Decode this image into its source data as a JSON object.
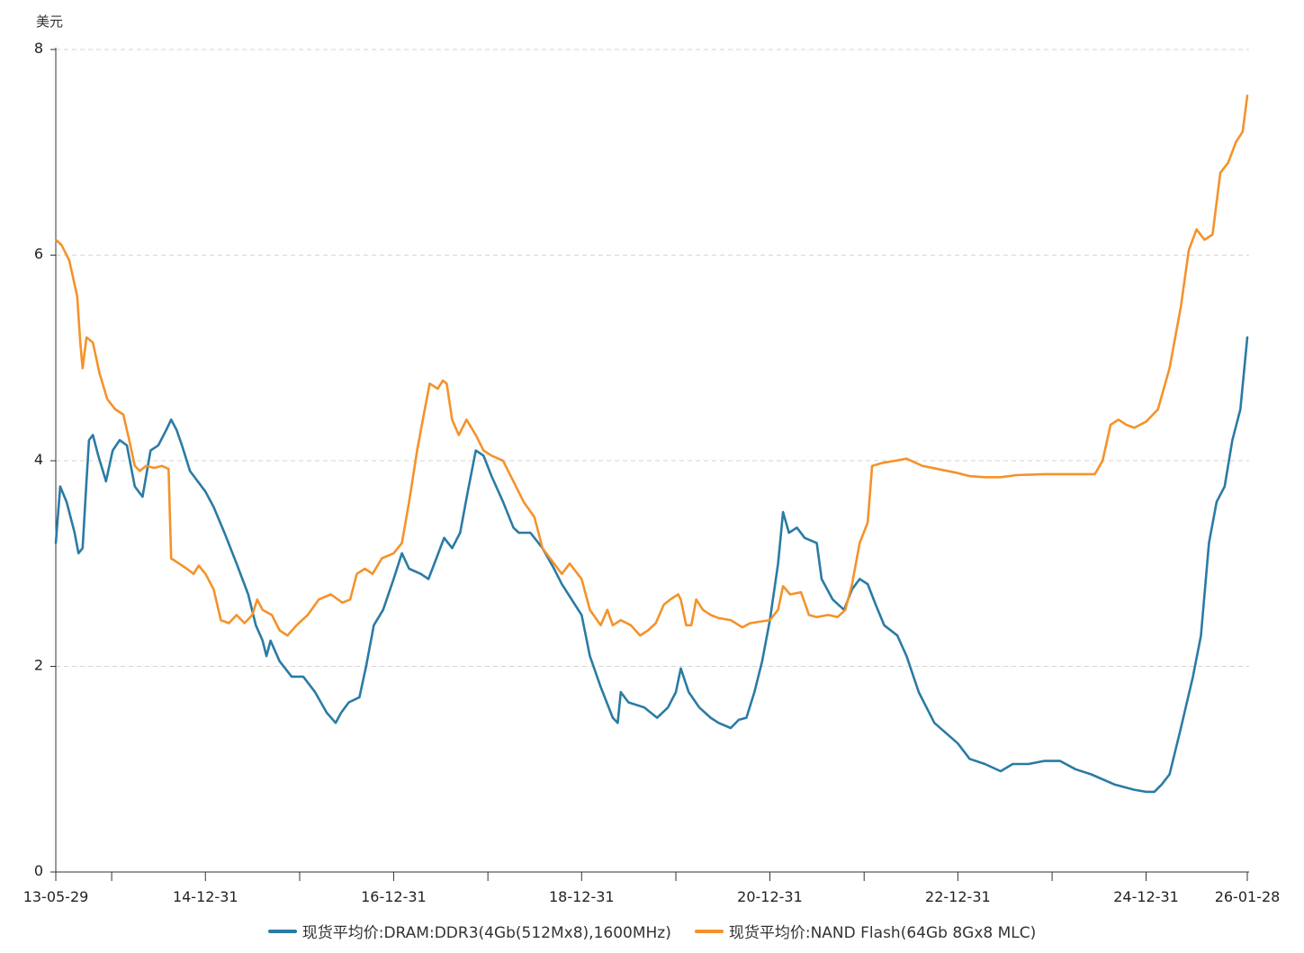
{
  "chart_data": {
    "type": "line",
    "ylabel": "美元",
    "ylim": [
      0,
      8
    ],
    "yticks": [
      "0",
      "2",
      "4",
      "6",
      "8"
    ],
    "grid": true,
    "legend_position": "bottom",
    "xlim": [
      "2013-05-29",
      "2026-01-28"
    ],
    "xticks": [
      {
        "date": "2013-05-29",
        "label": "13-05-29"
      },
      {
        "date": "2014-12-31",
        "label": "14-12-31"
      },
      {
        "date": "2016-12-31",
        "label": "16-12-31"
      },
      {
        "date": "2018-12-31",
        "label": "18-12-31"
      },
      {
        "date": "2020-12-31",
        "label": "20-12-31"
      },
      {
        "date": "2022-12-31",
        "label": "22-12-31"
      },
      {
        "date": "2024-12-31",
        "label": "24-12-31"
      },
      {
        "date": "2026-01-28",
        "label": "26-01-28"
      }
    ],
    "minor_ticks": [
      "2014-01-01",
      "2016-01-01",
      "2018-01-01",
      "2020-01-01",
      "2022-01-01",
      "2024-01-01"
    ],
    "series": [
      {
        "name": "现货平均价:DRAM:DDR3(4Gb(512Mx8),1600MHz)",
        "color": "#2a7ba5",
        "points": [
          [
            "2013-05-29",
            3.2
          ],
          [
            "2013-06-15",
            3.75
          ],
          [
            "2013-07-10",
            3.6
          ],
          [
            "2013-08-10",
            3.3
          ],
          [
            "2013-08-25",
            3.1
          ],
          [
            "2013-09-10",
            3.15
          ],
          [
            "2013-09-25",
            3.8
          ],
          [
            "2013-10-05",
            4.2
          ],
          [
            "2013-10-20",
            4.25
          ],
          [
            "2013-11-10",
            4.05
          ],
          [
            "2013-12-10",
            3.8
          ],
          [
            "2014-01-05",
            4.1
          ],
          [
            "2014-02-01",
            4.2
          ],
          [
            "2014-03-01",
            4.15
          ],
          [
            "2014-04-01",
            3.75
          ],
          [
            "2014-05-01",
            3.65
          ],
          [
            "2014-06-01",
            4.1
          ],
          [
            "2014-07-01",
            4.15
          ],
          [
            "2014-08-01",
            4.3
          ],
          [
            "2014-08-20",
            4.4
          ],
          [
            "2014-09-10",
            4.3
          ],
          [
            "2014-10-01",
            4.15
          ],
          [
            "2014-11-01",
            3.9
          ],
          [
            "2014-12-31",
            3.7
          ],
          [
            "2015-02-01",
            3.55
          ],
          [
            "2015-03-15",
            3.3
          ],
          [
            "2015-05-01",
            3.0
          ],
          [
            "2015-06-15",
            2.7
          ],
          [
            "2015-07-15",
            2.4
          ],
          [
            "2015-08-10",
            2.25
          ],
          [
            "2015-08-25",
            2.1
          ],
          [
            "2015-09-10",
            2.25
          ],
          [
            "2015-10-15",
            2.05
          ],
          [
            "2015-12-01",
            1.9
          ],
          [
            "2016-01-15",
            1.9
          ],
          [
            "2016-03-01",
            1.75
          ],
          [
            "2016-04-15",
            1.55
          ],
          [
            "2016-05-20",
            1.45
          ],
          [
            "2016-06-10",
            1.55
          ],
          [
            "2016-07-10",
            1.65
          ],
          [
            "2016-08-20",
            1.7
          ],
          [
            "2016-09-15",
            2.0
          ],
          [
            "2016-10-15",
            2.4
          ],
          [
            "2016-11-20",
            2.55
          ],
          [
            "2016-12-31",
            2.85
          ],
          [
            "2017-02-01",
            3.1
          ],
          [
            "2017-03-01",
            2.95
          ],
          [
            "2017-04-15",
            2.9
          ],
          [
            "2017-05-15",
            2.85
          ],
          [
            "2017-06-15",
            3.05
          ],
          [
            "2017-07-15",
            3.25
          ],
          [
            "2017-08-15",
            3.15
          ],
          [
            "2017-09-15",
            3.3
          ],
          [
            "2017-10-15",
            3.7
          ],
          [
            "2017-11-15",
            4.1
          ],
          [
            "2017-12-15",
            4.05
          ],
          [
            "2018-01-15",
            3.85
          ],
          [
            "2018-03-01",
            3.6
          ],
          [
            "2018-04-10",
            3.35
          ],
          [
            "2018-05-01",
            3.3
          ],
          [
            "2018-06-15",
            3.3
          ],
          [
            "2018-08-01",
            3.15
          ],
          [
            "2018-09-15",
            2.95
          ],
          [
            "2018-10-15",
            2.8
          ],
          [
            "2018-12-31",
            2.5
          ],
          [
            "2019-02-01",
            2.1
          ],
          [
            "2019-03-15",
            1.8
          ],
          [
            "2019-05-01",
            1.5
          ],
          [
            "2019-05-20",
            1.45
          ],
          [
            "2019-06-01",
            1.75
          ],
          [
            "2019-07-01",
            1.65
          ],
          [
            "2019-09-01",
            1.6
          ],
          [
            "2019-10-20",
            1.5
          ],
          [
            "2019-12-01",
            1.6
          ],
          [
            "2020-01-01",
            1.75
          ],
          [
            "2020-01-20",
            1.98
          ],
          [
            "2020-02-20",
            1.75
          ],
          [
            "2020-04-01",
            1.6
          ],
          [
            "2020-05-15",
            1.5
          ],
          [
            "2020-06-15",
            1.45
          ],
          [
            "2020-08-01",
            1.4
          ],
          [
            "2020-09-01",
            1.48
          ],
          [
            "2020-10-01",
            1.5
          ],
          [
            "2020-11-01",
            1.75
          ],
          [
            "2020-12-01",
            2.05
          ],
          [
            "2020-12-31",
            2.45
          ],
          [
            "2021-02-01",
            3.0
          ],
          [
            "2021-02-20",
            3.5
          ],
          [
            "2021-03-15",
            3.3
          ],
          [
            "2021-04-15",
            3.35
          ],
          [
            "2021-05-15",
            3.25
          ],
          [
            "2021-07-01",
            3.2
          ],
          [
            "2021-07-20",
            2.85
          ],
          [
            "2021-09-01",
            2.65
          ],
          [
            "2021-10-15",
            2.55
          ],
          [
            "2021-11-15",
            2.75
          ],
          [
            "2021-12-15",
            2.85
          ],
          [
            "2022-01-15",
            2.8
          ],
          [
            "2022-02-15",
            2.6
          ],
          [
            "2022-03-20",
            2.4
          ],
          [
            "2022-05-10",
            2.3
          ],
          [
            "2022-06-15",
            2.1
          ],
          [
            "2022-08-01",
            1.75
          ],
          [
            "2022-10-01",
            1.45
          ],
          [
            "2022-12-31",
            1.25
          ],
          [
            "2023-02-15",
            1.1
          ],
          [
            "2023-04-15",
            1.05
          ],
          [
            "2023-06-15",
            0.98
          ],
          [
            "2023-08-01",
            1.05
          ],
          [
            "2023-10-01",
            1.05
          ],
          [
            "2023-12-01",
            1.08
          ],
          [
            "2024-02-01",
            1.08
          ],
          [
            "2024-04-01",
            1.0
          ],
          [
            "2024-06-01",
            0.95
          ],
          [
            "2024-09-01",
            0.85
          ],
          [
            "2024-11-15",
            0.8
          ],
          [
            "2024-12-31",
            0.78
          ],
          [
            "2025-02-01",
            0.78
          ],
          [
            "2025-03-01",
            0.85
          ],
          [
            "2025-04-01",
            0.95
          ],
          [
            "2025-05-15",
            1.4
          ],
          [
            "2025-07-01",
            1.9
          ],
          [
            "2025-08-01",
            2.3
          ],
          [
            "2025-09-01",
            3.2
          ],
          [
            "2025-10-01",
            3.6
          ],
          [
            "2025-11-01",
            3.75
          ],
          [
            "2025-12-01",
            4.2
          ],
          [
            "2026-01-01",
            4.5
          ],
          [
            "2026-01-28",
            5.2
          ]
        ]
      },
      {
        "name": "现货平均价:NAND Flash(64Gb 8Gx8 MLC)",
        "color": "#f5922a",
        "points": [
          [
            "2013-05-29",
            6.15
          ],
          [
            "2013-06-20",
            6.1
          ],
          [
            "2013-07-20",
            5.95
          ],
          [
            "2013-08-20",
            5.6
          ],
          [
            "2013-09-01",
            5.15
          ],
          [
            "2013-09-10",
            4.9
          ],
          [
            "2013-09-25",
            5.2
          ],
          [
            "2013-10-20",
            5.15
          ],
          [
            "2013-11-15",
            4.85
          ],
          [
            "2013-12-15",
            4.6
          ],
          [
            "2014-01-15",
            4.5
          ],
          [
            "2014-02-15",
            4.45
          ],
          [
            "2014-03-10",
            4.2
          ],
          [
            "2014-04-01",
            3.95
          ],
          [
            "2014-04-20",
            3.9
          ],
          [
            "2014-05-15",
            3.95
          ],
          [
            "2014-06-15",
            3.93
          ],
          [
            "2014-07-15",
            3.95
          ],
          [
            "2014-08-10",
            3.92
          ],
          [
            "2014-08-20",
            3.05
          ],
          [
            "2014-09-20",
            3.0
          ],
          [
            "2014-10-20",
            2.95
          ],
          [
            "2014-11-15",
            2.9
          ],
          [
            "2014-12-05",
            2.98
          ],
          [
            "2014-12-31",
            2.9
          ],
          [
            "2015-02-01",
            2.75
          ],
          [
            "2015-03-01",
            2.45
          ],
          [
            "2015-04-01",
            2.42
          ],
          [
            "2015-05-01",
            2.5
          ],
          [
            "2015-06-01",
            2.42
          ],
          [
            "2015-07-01",
            2.5
          ],
          [
            "2015-07-20",
            2.65
          ],
          [
            "2015-08-10",
            2.55
          ],
          [
            "2015-09-15",
            2.5
          ],
          [
            "2015-10-15",
            2.35
          ],
          [
            "2015-11-15",
            2.3
          ],
          [
            "2015-12-20",
            2.4
          ],
          [
            "2016-02-01",
            2.5
          ],
          [
            "2016-03-15",
            2.65
          ],
          [
            "2016-05-01",
            2.7
          ],
          [
            "2016-06-15",
            2.62
          ],
          [
            "2016-07-15",
            2.65
          ],
          [
            "2016-08-10",
            2.9
          ],
          [
            "2016-09-10",
            2.95
          ],
          [
            "2016-10-10",
            2.9
          ],
          [
            "2016-11-15",
            3.05
          ],
          [
            "2016-12-31",
            3.1
          ],
          [
            "2017-02-01",
            3.2
          ],
          [
            "2017-03-01",
            3.6
          ],
          [
            "2017-04-01",
            4.1
          ],
          [
            "2017-05-01",
            4.5
          ],
          [
            "2017-05-20",
            4.75
          ],
          [
            "2017-06-20",
            4.7
          ],
          [
            "2017-07-10",
            4.78
          ],
          [
            "2017-07-25",
            4.75
          ],
          [
            "2017-08-15",
            4.4
          ],
          [
            "2017-09-10",
            4.25
          ],
          [
            "2017-10-10",
            4.4
          ],
          [
            "2017-11-15",
            4.25
          ],
          [
            "2017-12-15",
            4.1
          ],
          [
            "2018-01-15",
            4.05
          ],
          [
            "2018-03-01",
            4.0
          ],
          [
            "2018-04-10",
            3.8
          ],
          [
            "2018-05-20",
            3.6
          ],
          [
            "2018-07-01",
            3.45
          ],
          [
            "2018-08-01",
            3.15
          ],
          [
            "2018-09-15",
            3.0
          ],
          [
            "2018-10-15",
            2.9
          ],
          [
            "2018-11-15",
            3.0
          ],
          [
            "2018-12-31",
            2.85
          ],
          [
            "2019-02-01",
            2.55
          ],
          [
            "2019-03-15",
            2.4
          ],
          [
            "2019-04-10",
            2.55
          ],
          [
            "2019-05-01",
            2.4
          ],
          [
            "2019-06-01",
            2.45
          ],
          [
            "2019-07-10",
            2.4
          ],
          [
            "2019-08-15",
            2.3
          ],
          [
            "2019-09-15",
            2.35
          ],
          [
            "2019-10-15",
            2.42
          ],
          [
            "2019-11-15",
            2.6
          ],
          [
            "2019-12-10",
            2.65
          ],
          [
            "2020-01-10",
            2.7
          ],
          [
            "2020-01-20",
            2.65
          ],
          [
            "2020-02-10",
            2.4
          ],
          [
            "2020-03-01",
            2.4
          ],
          [
            "2020-03-20",
            2.65
          ],
          [
            "2020-04-15",
            2.55
          ],
          [
            "2020-05-15",
            2.5
          ],
          [
            "2020-06-15",
            2.47
          ],
          [
            "2020-08-01",
            2.45
          ],
          [
            "2020-09-15",
            2.38
          ],
          [
            "2020-10-15",
            2.42
          ],
          [
            "2020-12-31",
            2.45
          ],
          [
            "2021-02-01",
            2.55
          ],
          [
            "2021-02-20",
            2.78
          ],
          [
            "2021-03-20",
            2.7
          ],
          [
            "2021-05-01",
            2.72
          ],
          [
            "2021-06-01",
            2.5
          ],
          [
            "2021-07-01",
            2.48
          ],
          [
            "2021-08-15",
            2.5
          ],
          [
            "2021-09-20",
            2.48
          ],
          [
            "2021-10-20",
            2.55
          ],
          [
            "2021-11-15",
            2.8
          ],
          [
            "2021-12-15",
            3.2
          ],
          [
            "2022-01-15",
            3.4
          ],
          [
            "2022-02-01",
            3.95
          ],
          [
            "2022-03-15",
            3.98
          ],
          [
            "2022-05-01",
            4.0
          ],
          [
            "2022-06-15",
            4.02
          ],
          [
            "2022-08-15",
            3.95
          ],
          [
            "2022-12-31",
            3.88
          ],
          [
            "2023-02-15",
            3.85
          ],
          [
            "2023-04-15",
            3.84
          ],
          [
            "2023-06-15",
            3.84
          ],
          [
            "2023-08-15",
            3.86
          ],
          [
            "2023-12-01",
            3.87
          ],
          [
            "2024-04-01",
            3.87
          ],
          [
            "2024-06-15",
            3.87
          ],
          [
            "2024-07-15",
            4.0
          ],
          [
            "2024-08-15",
            4.35
          ],
          [
            "2024-09-15",
            4.4
          ],
          [
            "2024-10-15",
            4.35
          ],
          [
            "2024-11-15",
            4.32
          ],
          [
            "2024-12-31",
            4.38
          ],
          [
            "2025-02-15",
            4.5
          ],
          [
            "2025-04-01",
            4.9
          ],
          [
            "2025-05-15",
            5.5
          ],
          [
            "2025-06-15",
            6.05
          ],
          [
            "2025-07-15",
            6.25
          ],
          [
            "2025-08-15",
            6.15
          ],
          [
            "2025-09-15",
            6.2
          ],
          [
            "2025-10-15",
            6.8
          ],
          [
            "2025-11-15",
            6.9
          ],
          [
            "2025-12-15",
            7.1
          ],
          [
            "2026-01-10",
            7.2
          ],
          [
            "2026-01-28",
            7.55
          ]
        ]
      }
    ]
  }
}
